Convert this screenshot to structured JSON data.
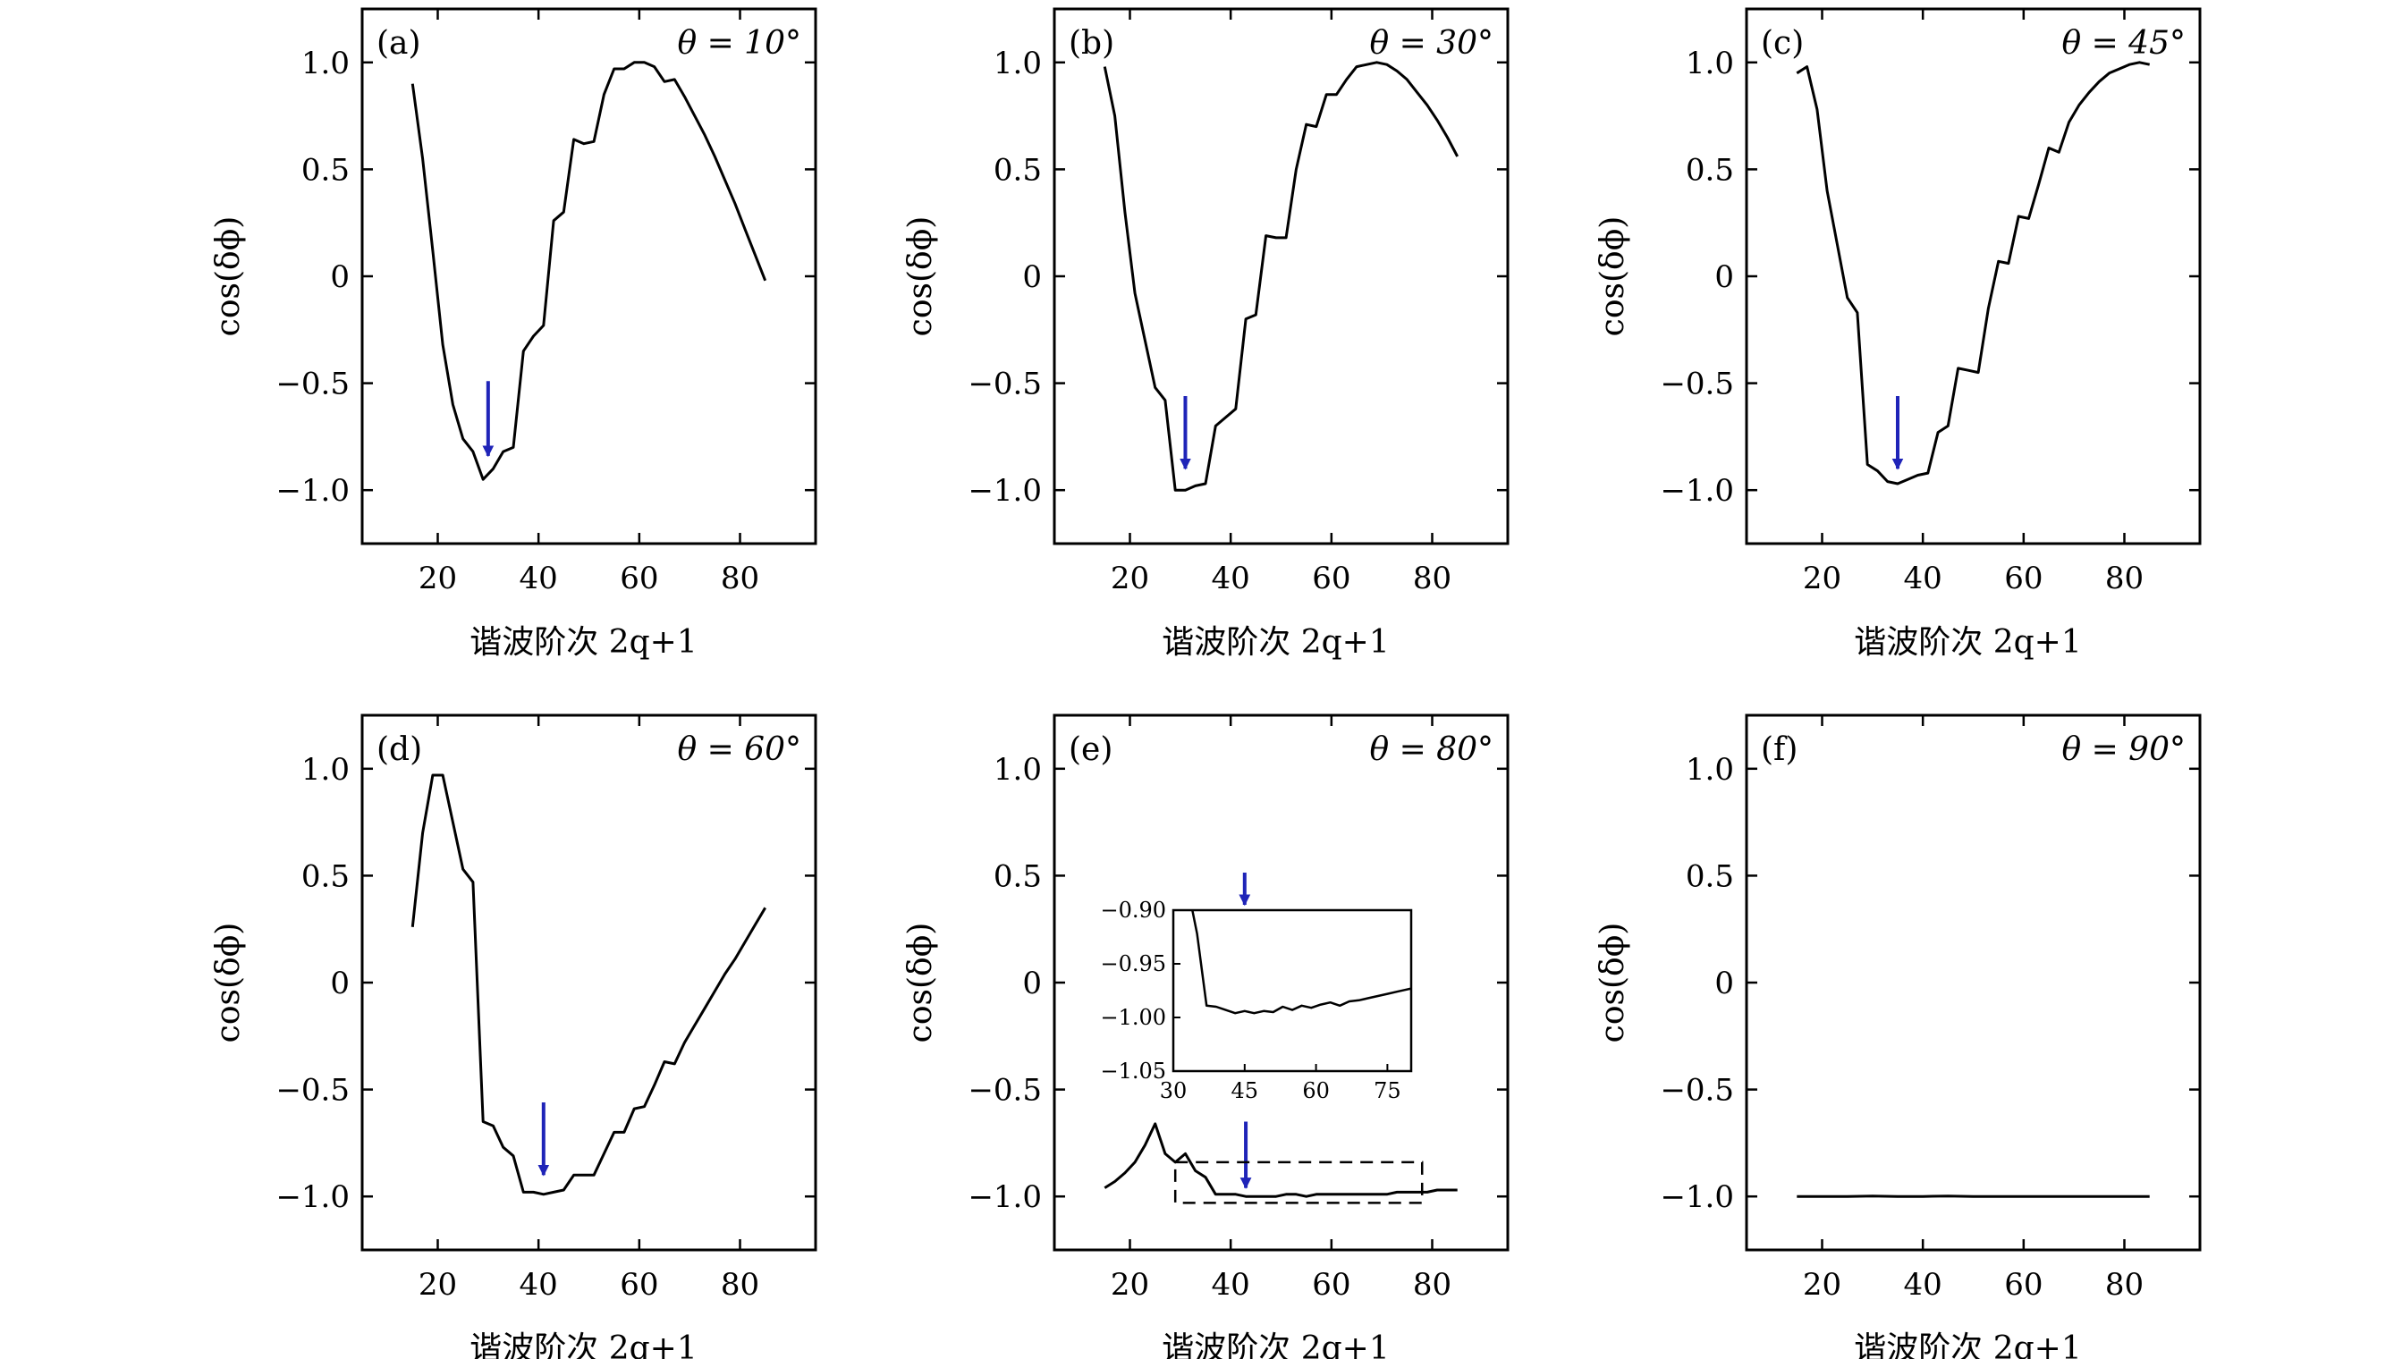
{
  "figure": {
    "xlabel": "谐波阶次 2q+1",
    "ylabel": "cos(δϕ)",
    "xticks": [
      20,
      40,
      60,
      80
    ],
    "yticks": [
      -1.0,
      -0.5,
      0,
      0.5,
      1.0
    ],
    "ytick_labels": [
      "−1.0",
      "−0.5",
      "0",
      "0.5",
      "1.0"
    ],
    "xtick_labels": [
      "20",
      "40",
      "60",
      "80"
    ],
    "arrow_color": "#1f24b8"
  },
  "chart_data": [
    {
      "type": "line",
      "label": "(a)",
      "title": "θ = 10°",
      "xlim": [
        5,
        95
      ],
      "ylim": [
        -1.25,
        1.25
      ],
      "x": [
        15,
        17,
        19,
        21,
        23,
        25,
        27,
        29,
        31,
        33,
        35,
        37,
        39,
        41,
        43,
        45,
        47,
        49,
        51,
        53,
        55,
        57,
        59,
        61,
        63,
        65,
        67,
        69,
        71,
        73,
        75,
        77,
        79,
        81,
        83,
        85
      ],
      "y": [
        0.9,
        0.55,
        0.12,
        -0.32,
        -0.6,
        -0.76,
        -0.82,
        -0.95,
        -0.9,
        -0.82,
        -0.8,
        -0.35,
        -0.28,
        -0.23,
        0.26,
        0.3,
        0.64,
        0.62,
        0.63,
        0.85,
        0.97,
        0.97,
        1.0,
        1.0,
        0.98,
        0.91,
        0.92,
        0.84,
        0.75,
        0.66,
        0.56,
        0.45,
        0.34,
        0.22,
        0.1,
        -0.02
      ],
      "arrow_x": 30,
      "arrow_y_top": -0.49,
      "arrow_y_tip": -0.84
    },
    {
      "type": "line",
      "label": "(b)",
      "title": "θ = 30°",
      "xlim": [
        5,
        95
      ],
      "ylim": [
        -1.25,
        1.25
      ],
      "x": [
        15,
        17,
        19,
        21,
        23,
        25,
        27,
        29,
        31,
        33,
        35,
        37,
        39,
        41,
        43,
        45,
        47,
        49,
        51,
        53,
        55,
        57,
        59,
        61,
        63,
        65,
        67,
        69,
        71,
        73,
        75,
        77,
        79,
        81,
        83,
        85
      ],
      "y": [
        0.98,
        0.75,
        0.3,
        -0.08,
        -0.3,
        -0.52,
        -0.58,
        -1.0,
        -1.0,
        -0.98,
        -0.97,
        -0.7,
        -0.66,
        -0.62,
        -0.2,
        -0.18,
        0.19,
        0.18,
        0.18,
        0.5,
        0.71,
        0.7,
        0.85,
        0.85,
        0.92,
        0.98,
        0.99,
        1.0,
        0.99,
        0.96,
        0.92,
        0.86,
        0.8,
        0.73,
        0.65,
        0.56
      ],
      "arrow_x": 31,
      "arrow_y_top": -0.56,
      "arrow_y_tip": -0.9
    },
    {
      "type": "line",
      "label": "(c)",
      "title": "θ = 45°",
      "xlim": [
        5,
        95
      ],
      "ylim": [
        -1.25,
        1.25
      ],
      "x": [
        15,
        17,
        19,
        21,
        23,
        25,
        27,
        29,
        31,
        33,
        35,
        37,
        39,
        41,
        43,
        45,
        47,
        49,
        51,
        53,
        55,
        57,
        59,
        61,
        63,
        65,
        67,
        69,
        71,
        73,
        75,
        77,
        79,
        81,
        83,
        85
      ],
      "y": [
        0.95,
        0.98,
        0.78,
        0.4,
        0.15,
        -0.1,
        -0.17,
        -0.88,
        -0.91,
        -0.96,
        -0.97,
        -0.95,
        -0.93,
        -0.92,
        -0.73,
        -0.7,
        -0.43,
        -0.44,
        -0.45,
        -0.15,
        0.07,
        0.06,
        0.28,
        0.27,
        0.43,
        0.6,
        0.58,
        0.72,
        0.8,
        0.86,
        0.91,
        0.95,
        0.97,
        0.99,
        1.0,
        0.99
      ],
      "arrow_x": 35,
      "arrow_y_top": -0.56,
      "arrow_y_tip": -0.9
    },
    {
      "type": "line",
      "label": "(d)",
      "title": "θ = 60°",
      "xlim": [
        5,
        95
      ],
      "ylim": [
        -1.25,
        1.25
      ],
      "x": [
        15,
        17,
        19,
        21,
        23,
        25,
        27,
        29,
        31,
        33,
        35,
        37,
        39,
        41,
        43,
        45,
        47,
        49,
        51,
        53,
        55,
        57,
        59,
        61,
        63,
        65,
        67,
        69,
        71,
        73,
        75,
        77,
        79,
        81,
        83,
        85
      ],
      "y": [
        0.26,
        0.7,
        0.97,
        0.97,
        0.75,
        0.53,
        0.47,
        -0.65,
        -0.67,
        -0.77,
        -0.81,
        -0.98,
        -0.98,
        -0.99,
        -0.98,
        -0.97,
        -0.9,
        -0.9,
        -0.9,
        -0.8,
        -0.7,
        -0.7,
        -0.59,
        -0.58,
        -0.48,
        -0.37,
        -0.38,
        -0.28,
        -0.2,
        -0.12,
        -0.04,
        0.04,
        0.11,
        0.19,
        0.27,
        0.35
      ],
      "arrow_x": 41,
      "arrow_y_top": -0.56,
      "arrow_y_tip": -0.9
    },
    {
      "type": "line",
      "label": "(e)",
      "title": "θ = 80°",
      "xlim": [
        5,
        95
      ],
      "ylim": [
        -1.25,
        1.25
      ],
      "x": [
        15,
        17,
        19,
        21,
        23,
        25,
        27,
        29,
        31,
        33,
        35,
        37,
        39,
        41,
        43,
        45,
        47,
        49,
        51,
        53,
        55,
        57,
        59,
        61,
        63,
        65,
        67,
        69,
        71,
        73,
        75,
        77,
        79,
        81,
        83,
        85
      ],
      "y": [
        -0.96,
        -0.93,
        -0.89,
        -0.84,
        -0.76,
        -0.66,
        -0.8,
        -0.84,
        -0.8,
        -0.88,
        -0.91,
        -0.99,
        -0.99,
        -0.99,
        -1.0,
        -1.0,
        -1.0,
        -1.0,
        -0.99,
        -0.99,
        -1.0,
        -0.99,
        -0.99,
        -0.99,
        -0.99,
        -0.99,
        -0.99,
        -0.99,
        -0.99,
        -0.98,
        -0.98,
        -0.98,
        -0.98,
        -0.97,
        -0.97,
        -0.97
      ],
      "arrow_x": 43,
      "arrow_y_top": -0.65,
      "arrow_y_tip": -0.96,
      "dashed_box": {
        "x": [
          29,
          78
        ],
        "y": [
          -1.03,
          -0.84
        ]
      },
      "inset": {
        "xlim": [
          30,
          80
        ],
        "ylim": [
          -1.05,
          -0.9
        ],
        "xticks": [
          30,
          45,
          60,
          75
        ],
        "yticks": [
          -1.05,
          -1.0,
          -0.95,
          -0.9
        ],
        "ytick_labels": [
          "−1.05",
          "−1.00",
          "−0.95",
          "−0.90"
        ],
        "x": [
          34,
          35,
          37,
          39,
          41,
          43,
          45,
          47,
          49,
          51,
          53,
          55,
          57,
          59,
          61,
          63,
          65,
          67,
          69,
          71,
          73,
          75,
          77,
          79,
          80
        ],
        "y": [
          -0.9,
          -0.922,
          -0.989,
          -0.99,
          -0.993,
          -0.996,
          -0.994,
          -0.996,
          -0.994,
          -0.995,
          -0.99,
          -0.993,
          -0.989,
          -0.991,
          -0.988,
          -0.986,
          -0.989,
          -0.985,
          -0.984,
          -0.982,
          -0.98,
          -0.978,
          -0.976,
          -0.974,
          -0.973
        ],
        "arrow_x": 45,
        "arrow_y_top": -0.865,
        "arrow_y_tip": -0.895
      }
    },
    {
      "type": "line",
      "label": "(f)",
      "title": "θ = 90°",
      "xlim": [
        5,
        95
      ],
      "ylim": [
        -1.25,
        1.25
      ],
      "x": [
        15,
        20,
        25,
        30,
        35,
        40,
        45,
        50,
        55,
        60,
        65,
        70,
        75,
        80,
        85
      ],
      "y": [
        -1.0,
        -1.0,
        -1.0,
        -0.998,
        -1.0,
        -1.0,
        -0.998,
        -1.0,
        -1.0,
        -1.0,
        -1.0,
        -1.0,
        -1.0,
        -1.0,
        -1.0
      ]
    }
  ]
}
